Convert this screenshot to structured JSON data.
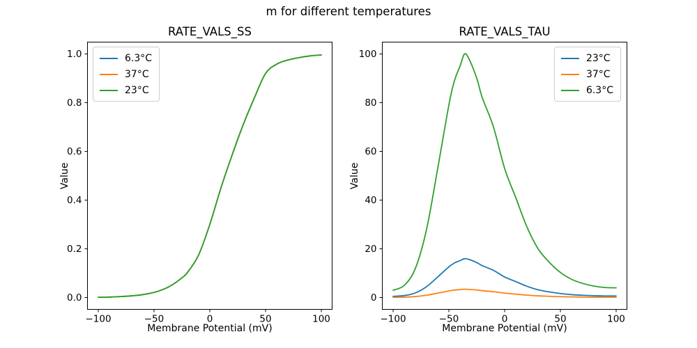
{
  "figure": {
    "suptitle": "m for different temperatures",
    "background": "#ffffff",
    "text_color": "#000000",
    "spine_color": "#000000"
  },
  "palette": {
    "blue": "#1f77b4",
    "orange": "#ff7f0e",
    "green": "#2ca02c"
  },
  "chart_data": [
    {
      "type": "line",
      "title": "RATE_VALS_SS",
      "xlabel": "Membrane Potential (mV)",
      "ylabel": "Value",
      "xlim": [
        -110,
        110
      ],
      "ylim": [
        -0.05,
        1.05
      ],
      "grid": false,
      "legend_position": "upper-left",
      "xticks": {
        "values": [
          -100,
          -50,
          0,
          50,
          100
        ],
        "labels": [
          "−100",
          "−50",
          "0",
          "50",
          "100"
        ]
      },
      "yticks": {
        "values": [
          0.0,
          0.2,
          0.4,
          0.6,
          0.8,
          1.0
        ],
        "labels": [
          "0.0",
          "0.2",
          "0.4",
          "0.6",
          "0.8",
          "1.0"
        ]
      },
      "x": [
        -100,
        -90,
        -80,
        -70,
        -60,
        -50,
        -45,
        -40,
        -36,
        -32,
        -25,
        -20,
        -10,
        0,
        10,
        20,
        30,
        40,
        50,
        60,
        70,
        80,
        90,
        100
      ],
      "series": [
        {
          "name": "6.3°C",
          "color": "#1f77b4",
          "values": [
            0.001,
            0.002,
            0.004,
            0.007,
            0.012,
            0.021,
            0.028,
            0.037,
            0.046,
            0.057,
            0.081,
            0.103,
            0.175,
            0.3,
            0.45,
            0.585,
            0.71,
            0.82,
            0.92,
            0.958,
            0.975,
            0.985,
            0.992,
            0.996
          ]
        },
        {
          "name": "37°C",
          "color": "#ff7f0e",
          "values": [
            0.001,
            0.002,
            0.004,
            0.007,
            0.012,
            0.021,
            0.028,
            0.037,
            0.046,
            0.057,
            0.081,
            0.103,
            0.175,
            0.3,
            0.45,
            0.585,
            0.71,
            0.82,
            0.92,
            0.958,
            0.975,
            0.985,
            0.992,
            0.996
          ]
        },
        {
          "name": "23°C",
          "color": "#2ca02c",
          "values": [
            0.001,
            0.002,
            0.004,
            0.007,
            0.012,
            0.021,
            0.028,
            0.037,
            0.046,
            0.057,
            0.081,
            0.103,
            0.175,
            0.3,
            0.45,
            0.585,
            0.71,
            0.82,
            0.92,
            0.958,
            0.975,
            0.985,
            0.992,
            0.996
          ]
        }
      ],
      "note": "All three curves coincide; the 23°C (green) curve is drawn last and hides the others."
    },
    {
      "type": "line",
      "title": "RATE_VALS_TAU",
      "xlabel": "Membrane Potential (mV)",
      "ylabel": "Value",
      "xlim": [
        -110,
        110
      ],
      "ylim": [
        -5,
        105
      ],
      "grid": false,
      "legend_position": "upper-right",
      "xticks": {
        "values": [
          -100,
          -50,
          0,
          50,
          100
        ],
        "labels": [
          "−100",
          "−50",
          "0",
          "50",
          "100"
        ]
      },
      "yticks": {
        "values": [
          0,
          20,
          40,
          60,
          80,
          100
        ],
        "labels": [
          "0",
          "20",
          "40",
          "60",
          "80",
          "100"
        ]
      },
      "x": [
        -100,
        -90,
        -80,
        -70,
        -60,
        -50,
        -45,
        -40,
        -36,
        -32,
        -25,
        -20,
        -10,
        0,
        10,
        20,
        30,
        40,
        50,
        60,
        70,
        80,
        90,
        100
      ],
      "series": [
        {
          "name": "23°C",
          "color": "#1f77b4",
          "values": [
            0.48,
            0.8,
            1.91,
            4.47,
            8.45,
            12.6,
            14.19,
            15.15,
            15.95,
            15.63,
            14.35,
            13.08,
            11.16,
            8.45,
            6.54,
            4.63,
            3.19,
            2.31,
            1.64,
            1.2,
            0.93,
            0.75,
            0.65,
            0.64
          ]
        },
        {
          "name": "37°C",
          "color": "#ff7f0e",
          "values": [
            0.1,
            0.17,
            0.41,
            0.96,
            1.82,
            2.71,
            3.05,
            3.26,
            3.43,
            3.36,
            3.09,
            2.81,
            2.4,
            1.82,
            1.41,
            0.99,
            0.69,
            0.5,
            0.35,
            0.26,
            0.2,
            0.16,
            0.14,
            0.14
          ]
        },
        {
          "name": "6.3°C",
          "color": "#2ca02c",
          "values": [
            3.0,
            5.0,
            12.0,
            28.0,
            53.0,
            79.0,
            89.0,
            95.0,
            100.0,
            98.0,
            90.0,
            82.0,
            70.0,
            53.0,
            41.0,
            29.0,
            20.0,
            14.5,
            10.3,
            7.5,
            5.8,
            4.7,
            4.1,
            4.0
          ]
        }
      ],
      "note": "Peak of 6.3°C curve ≈ 100 at −36 mV; 23°C peak ≈ 16; 37°C peak ≈ 3.4."
    }
  ]
}
